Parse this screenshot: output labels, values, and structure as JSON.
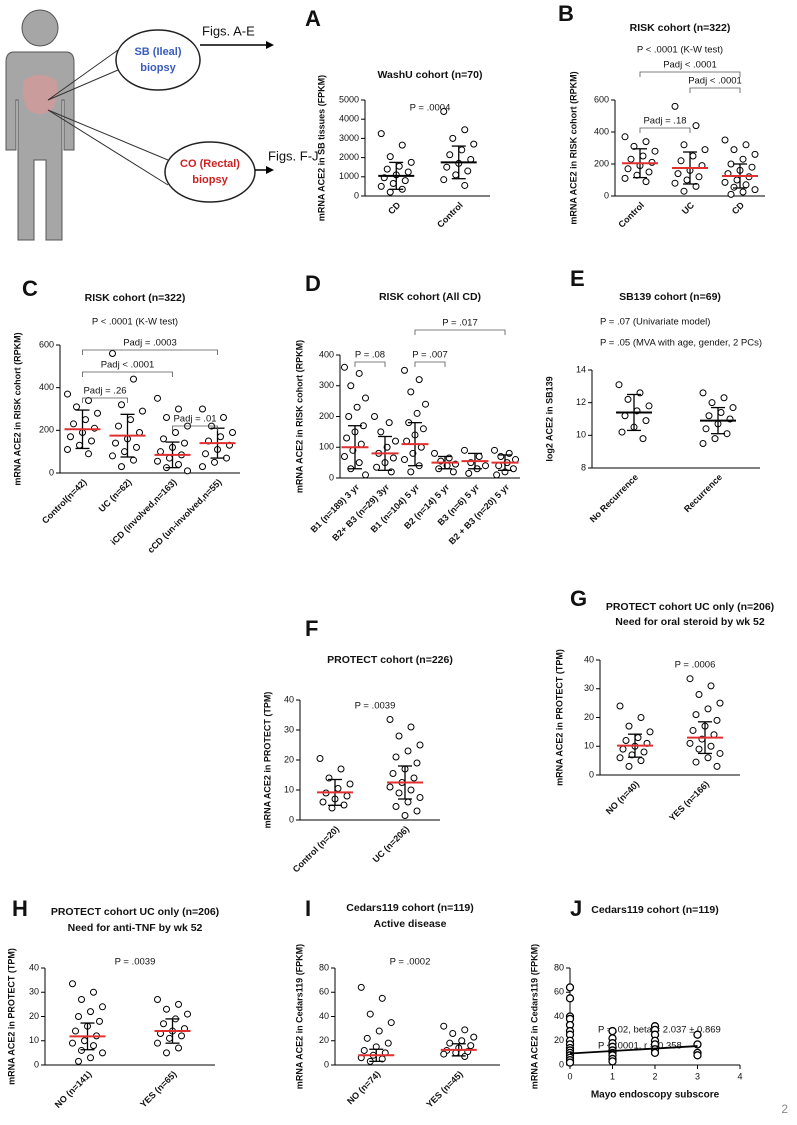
{
  "diagram": {
    "sb_circle": [
      "SB (Ileal)",
      "biopsy"
    ],
    "co_circle": [
      "CO (Rectal)",
      "biopsy"
    ],
    "figs_top": "Figs. A-E",
    "figs_bottom": "Figs. F-J"
  },
  "page_number": "2",
  "chart_data": [
    {
      "type": "dot",
      "label": "A",
      "title": [
        "WashU cohort (n=70)"
      ],
      "annotations": [
        "P = .0004"
      ],
      "brackets": [],
      "ylabel": "mRNA ACE2 in SB tissues (FPKM)",
      "categories": [
        "CD",
        "Control"
      ],
      "ylim": [
        0,
        5000
      ],
      "yticks": [
        0,
        1000,
        2000,
        3000,
        4000,
        5000
      ],
      "points": [
        [
          3250,
          2650,
          2050,
          1750,
          1550,
          1400,
          1250,
          1100,
          950,
          800,
          650,
          500,
          350,
          200
        ],
        [
          4400,
          3450,
          3000,
          2700,
          2400,
          2150,
          1900,
          1700,
          1500,
          1300,
          1100,
          850,
          550
        ]
      ],
      "means": [
        1050,
        1750
      ],
      "sds": [
        700,
        850
      ],
      "mean_color": "#000000"
    },
    {
      "type": "dot",
      "label": "B",
      "title": [
        "RISK cohort (n=322)"
      ],
      "annotations": [
        "P < .0001 (K-W test)"
      ],
      "brackets": [
        {
          "label": "Padj < .0001",
          "from": 0,
          "to": 2
        },
        {
          "label": "Padj < .0001",
          "from": 1,
          "to": 2
        },
        {
          "label": "Padj = .18",
          "from": 0,
          "to": 1
        }
      ],
      "ylabel": "mRNA ACE2 in RISK cohort (RPKM)",
      "categories": [
        "Control",
        "UC",
        "CD"
      ],
      "ylim": [
        0,
        600
      ],
      "yticks": [
        0,
        200,
        400,
        600
      ],
      "points": [
        [
          370,
          340,
          310,
          280,
          250,
          230,
          210,
          190,
          170,
          150,
          130,
          110,
          90
        ],
        [
          560,
          440,
          320,
          290,
          250,
          220,
          190,
          160,
          140,
          120,
          100,
          80,
          60,
          30
        ],
        [
          350,
          320,
          290,
          260,
          230,
          200,
          180,
          160,
          140,
          120,
          100,
          85,
          70,
          55,
          40,
          25,
          10
        ]
      ],
      "means": [
        205,
        175,
        125
      ],
      "sds": [
        90,
        100,
        75
      ],
      "mean_color": "#e03030"
    },
    {
      "type": "dot",
      "label": "C",
      "title": [
        "RISK cohort (n=322)"
      ],
      "annotations": [
        "P < .0001 (K-W test)"
      ],
      "brackets": [
        {
          "label": "Padj = .0003",
          "from": 0,
          "to": 3
        },
        {
          "label": "Padj < .0001",
          "from": 0,
          "to": 2
        },
        {
          "label": "Padj = .26",
          "from": 0,
          "to": 1
        },
        {
          "label": "Padj = .01",
          "from": 2,
          "to": 3
        }
      ],
      "ylabel": "mRNA ACE2 in RISK cohort (RPKM)",
      "categories": [
        "Control(n=42)",
        "UC (n=62)",
        "iCD (involved,n=163)",
        "cCD (un-involved,n=55)"
      ],
      "ylim": [
        0,
        600
      ],
      "yticks": [
        0,
        200,
        400,
        600
      ],
      "points": [
        [
          370,
          340,
          310,
          280,
          250,
          230,
          210,
          190,
          170,
          150,
          130,
          110,
          90
        ],
        [
          560,
          440,
          320,
          290,
          250,
          220,
          190,
          160,
          140,
          120,
          100,
          80,
          60,
          30
        ],
        [
          350,
          300,
          260,
          220,
          190,
          160,
          140,
          120,
          100,
          85,
          70,
          55,
          40,
          25,
          10
        ],
        [
          300,
          260,
          220,
          190,
          170,
          150,
          130,
          110,
          90,
          70,
          50,
          30
        ]
      ],
      "means": [
        205,
        175,
        85,
        140
      ],
      "sds": [
        90,
        100,
        60,
        70
      ],
      "mean_color": "#e03030"
    },
    {
      "type": "dot",
      "label": "D",
      "title": [
        "RISK cohort (All CD)"
      ],
      "annotations": [],
      "brackets": [
        {
          "label": "P = .017",
          "from": 2,
          "to": 5
        },
        {
          "label": "P = .08",
          "from": 0,
          "to": 1
        },
        {
          "label": "P = .007",
          "from": 2,
          "to": 3
        }
      ],
      "ylabel": "mRNA ACE2 in RISK cohort (RPKM)",
      "categories": [
        "B1 (n=189) 3 yr",
        "B2+ B3 (n=29) 3yr",
        "B1 (n=104) 5 yr",
        "B2 (n=14) 5 yr",
        "B3 (n=6) 5 yr",
        "B2 + B3 (n=20) 5 yr"
      ],
      "ylim": [
        0,
        400
      ],
      "yticks": [
        0,
        100,
        200,
        300,
        400
      ],
      "points": [
        [
          360,
          340,
          300,
          260,
          230,
          200,
          170,
          150,
          130,
          110,
          90,
          70,
          50,
          30,
          10
        ],
        [
          200,
          180,
          150,
          120,
          100,
          80,
          65,
          50,
          35,
          20
        ],
        [
          350,
          320,
          280,
          240,
          210,
          180,
          160,
          140,
          120,
          100,
          80,
          60,
          40,
          20
        ],
        [
          80,
          65,
          55,
          45,
          40,
          30,
          20
        ],
        [
          90,
          70,
          50,
          40,
          30,
          15
        ],
        [
          90,
          80,
          70,
          60,
          50,
          40,
          30,
          20,
          10
        ]
      ],
      "means": [
        100,
        80,
        110,
        50,
        55,
        50
      ],
      "sds": [
        70,
        55,
        70,
        20,
        25,
        25
      ],
      "mean_color": "#e03030"
    },
    {
      "type": "dot",
      "label": "E",
      "title": [
        "SB139 cohort (n=69)"
      ],
      "annotations": [
        "P = .07 (Univariate model)",
        "P = .05 (MVA with age, gender, 2 PCs)"
      ],
      "brackets": [],
      "ylabel": "log2 ACE2 in SB139",
      "categories": [
        "No Recurrence",
        "Recurrence"
      ],
      "ylim": [
        8,
        14
      ],
      "yticks": [
        8,
        10,
        12,
        14
      ],
      "points": [
        [
          13.1,
          12.6,
          12.2,
          11.8,
          11.5,
          11.2,
          10.9,
          10.5,
          10.2,
          9.8
        ],
        [
          12.6,
          12.3,
          12.0,
          11.7,
          11.4,
          11.2,
          11.0,
          10.7,
          10.4,
          10.1,
          9.8,
          9.5
        ]
      ],
      "means": [
        11.4,
        10.9
      ],
      "sds": [
        1.1,
        0.8
      ],
      "mean_color": "#000000"
    },
    {
      "type": "dot",
      "label": "F",
      "title": [
        "PROTECT cohort (n=226)"
      ],
      "annotations": [
        "P = .0039"
      ],
      "brackets": [],
      "ylabel": "mRNA ACE2 in PROTECT (TPM)",
      "categories": [
        "Control (n=20)",
        "UC (n=206)"
      ],
      "ylim": [
        0,
        40
      ],
      "yticks": [
        0,
        10,
        20,
        30,
        40
      ],
      "points": [
        [
          20.5,
          17,
          14,
          12,
          10.5,
          9,
          8,
          7,
          6,
          5,
          4
        ],
        [
          33.5,
          31,
          28,
          25,
          23,
          21,
          19,
          17,
          15.5,
          14,
          12.5,
          11,
          10,
          9,
          7.5,
          6,
          4.5,
          3,
          1.5
        ]
      ],
      "means": [
        9.2,
        12.5
      ],
      "sds": [
        4.3,
        5.5
      ],
      "mean_color": "#e03030"
    },
    {
      "type": "dot",
      "label": "G",
      "title": [
        "PROTECT cohort UC only (n=206)",
        "Need for oral steroid by wk 52"
      ],
      "annotations": [
        "P = .0006"
      ],
      "brackets": [],
      "ylabel": "mRNA ACE2 in PROTECT (TPM)",
      "categories": [
        "NO (n=40)",
        "YES (n=166)"
      ],
      "ylim": [
        0,
        40
      ],
      "yticks": [
        0,
        10,
        20,
        30,
        40
      ],
      "points": [
        [
          24,
          20,
          17,
          15,
          13,
          12,
          11,
          10,
          9,
          8,
          7,
          6,
          5,
          3
        ],
        [
          33.5,
          31,
          28,
          25,
          23,
          21,
          19,
          17,
          15.5,
          14,
          12.5,
          11,
          10,
          9,
          7.5,
          6,
          4.5,
          3
        ]
      ],
      "means": [
        10.2,
        13
      ],
      "sds": [
        4,
        5.5
      ],
      "mean_color": "#e03030"
    },
    {
      "type": "dot",
      "label": "H",
      "title": [
        "PROTECT cohort UC only (n=206)",
        "Need for anti-TNF by wk 52"
      ],
      "annotations": [
        "P = .0039"
      ],
      "brackets": [],
      "ylabel": "mRNA ACE2 in PROTECT (TPM)",
      "categories": [
        "NO (n=141)",
        "YES (n=65)"
      ],
      "ylim": [
        0,
        40
      ],
      "yticks": [
        0,
        10,
        20,
        30,
        40
      ],
      "points": [
        [
          33.5,
          30,
          27,
          24,
          22,
          20,
          18,
          16,
          14,
          12,
          10,
          9,
          8,
          6,
          5,
          3,
          1.5
        ],
        [
          27,
          25,
          23,
          21,
          19,
          17,
          15,
          14,
          13,
          12,
          11,
          9,
          7,
          5
        ]
      ],
      "means": [
        11.8,
        14
      ],
      "sds": [
        5.5,
        5
      ],
      "mean_color": "#e03030"
    },
    {
      "type": "dot",
      "label": "I",
      "title": [
        "Cedars119 cohort (n=119)",
        "Active disease"
      ],
      "annotations": [
        "P = .0002"
      ],
      "brackets": [],
      "ylabel": "mRNA ACE2 in Cedars119 (FPKM)",
      "categories": [
        "NO (n=74)",
        "YES (n=45)"
      ],
      "ylim": [
        0,
        80
      ],
      "yticks": [
        0,
        20,
        40,
        60,
        80
      ],
      "points": [
        [
          64,
          55,
          42,
          35,
          28,
          22,
          18,
          15,
          12,
          10,
          8,
          6,
          5,
          3
        ],
        [
          32,
          29,
          26,
          23,
          20,
          18,
          16,
          14,
          12,
          11,
          10,
          9,
          7
        ]
      ],
      "means": [
        8,
        12.5
      ],
      "sds": [
        5,
        5
      ],
      "mean_color": "#e03030"
    },
    {
      "type": "scatter",
      "label": "J",
      "title": [
        "Cedars119 cohort (n=119)"
      ],
      "annotations": [
        "P = .02, beta = 2.037 ± 0.869",
        "P < .0001, r = 0.358"
      ],
      "ylabel": "mRNA ACE2 in Cedars119 (FPKM)",
      "xlabel": "Mayo endoscopy subscore",
      "xlim": [
        0,
        4
      ],
      "xticks": [
        0,
        1,
        2,
        3,
        4
      ],
      "ylim": [
        0,
        80
      ],
      "yticks": [
        0,
        20,
        40,
        60,
        80
      ],
      "x": [
        0,
        0,
        0,
        0,
        0,
        0,
        0,
        0,
        0,
        0,
        0,
        0,
        0,
        0,
        0,
        0,
        1,
        1,
        1,
        1,
        1,
        1,
        1,
        1,
        1,
        2,
        2,
        2,
        2,
        2,
        2,
        2,
        3,
        3,
        3,
        3
      ],
      "y": [
        64,
        55,
        40,
        38,
        33,
        28,
        25,
        20,
        17,
        14,
        12,
        10,
        8,
        6,
        4,
        2,
        28,
        22,
        18,
        15,
        12,
        10,
        8,
        5,
        3,
        32,
        29,
        25,
        20,
        17,
        13,
        10,
        25,
        17,
        10,
        8
      ],
      "fit_intercept": 9.5,
      "fit_slope": 2.037
    }
  ]
}
